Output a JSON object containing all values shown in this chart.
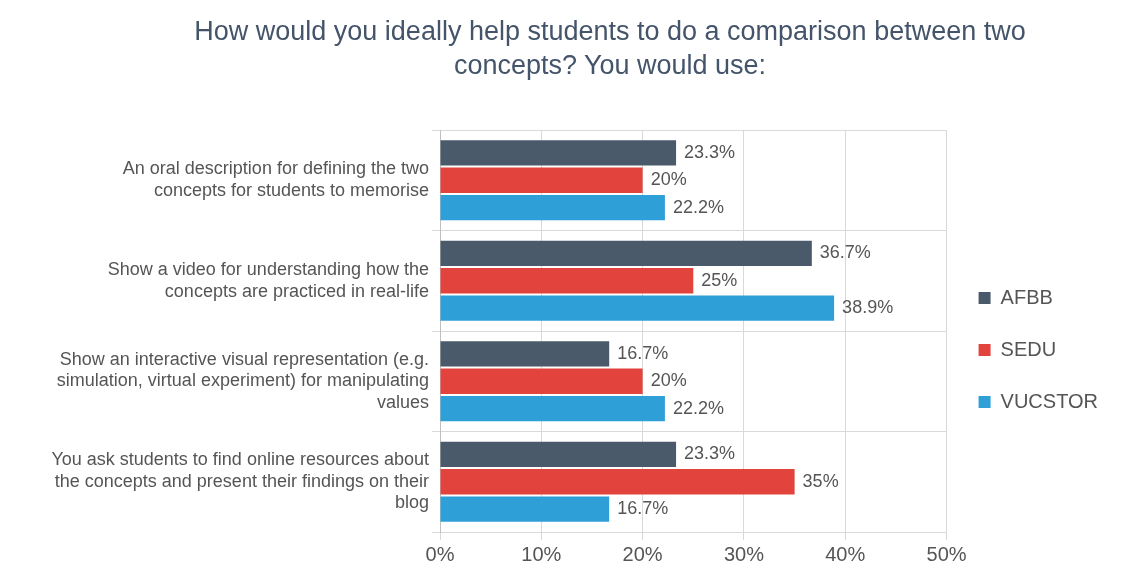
{
  "chart_data": {
    "type": "bar",
    "orientation": "horizontal",
    "title": "How would you ideally help students to do a comparison between two concepts? You would use:",
    "categories": [
      "An oral description for defining the two concepts for students to memorise",
      "Show a video for understanding how the concepts are practiced in real-life",
      "Show an interactive visual representation (e.g. simulation, virtual experiment) for manipulating values",
      "You ask students to find online resources about the concepts and present their findings on their blog"
    ],
    "series": [
      {
        "name": "AFBB",
        "color": "#4b5a6b",
        "values": [
          23.3,
          36.7,
          16.7,
          23.3
        ],
        "value_labels": [
          "23.3%",
          "36.7%",
          "16.7%",
          "23.3%"
        ]
      },
      {
        "name": "SEDU",
        "color": "#e2433d",
        "values": [
          20,
          25,
          20,
          35
        ],
        "value_labels": [
          "20%",
          "25%",
          "20%",
          "35%"
        ]
      },
      {
        "name": "VUCSTOR",
        "color": "#2f9fd8",
        "values": [
          22.2,
          38.9,
          22.2,
          16.7
        ],
        "value_labels": [
          "22.2%",
          "38.9%",
          "22.2%",
          "16.7%"
        ]
      }
    ],
    "xlim": [
      0,
      50
    ],
    "xticks": [
      {
        "value": 0,
        "label": "0%"
      },
      {
        "value": 10,
        "label": "10%"
      },
      {
        "value": 20,
        "label": "20%"
      },
      {
        "value": 30,
        "label": "30%"
      },
      {
        "value": 40,
        "label": "40%"
      },
      {
        "value": 50,
        "label": "50%"
      }
    ],
    "grid": true,
    "legend": "right"
  }
}
